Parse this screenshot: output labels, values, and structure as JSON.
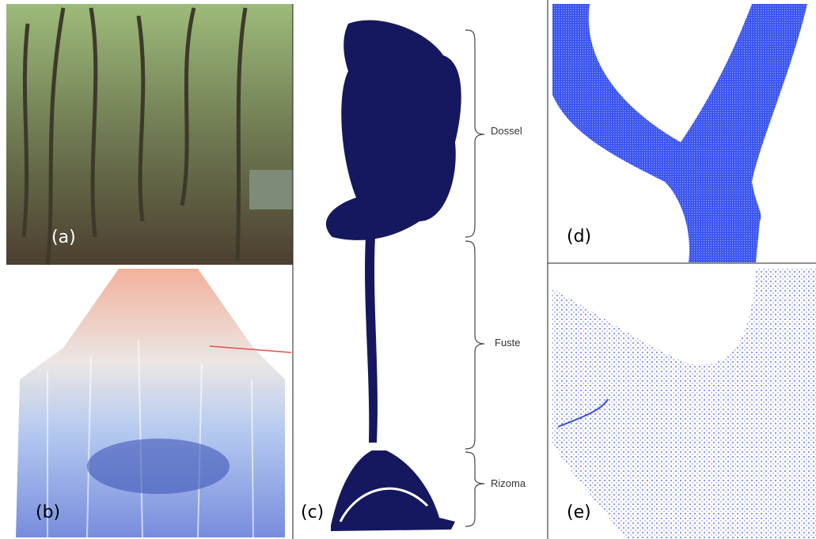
{
  "panels": [
    {
      "label": "(a)"
    },
    {
      "label": "(b)"
    },
    {
      "label": "(c)"
    },
    {
      "label": "(d)"
    },
    {
      "label": "(e)"
    }
  ],
  "annotations": [
    "Dossel",
    "Fuste",
    "Rizoma"
  ]
}
